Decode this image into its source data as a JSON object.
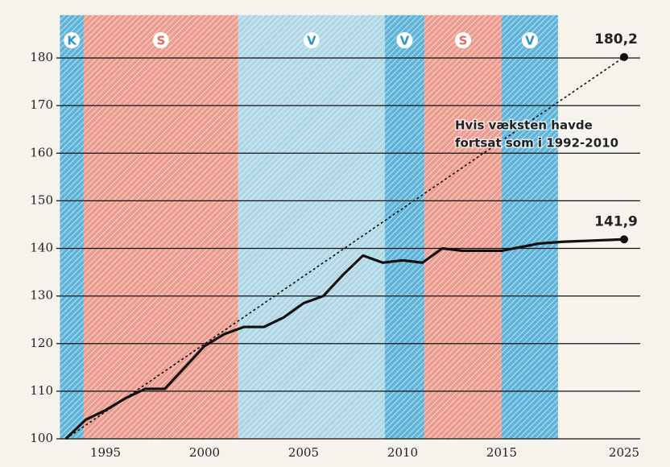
{
  "chart_data": {
    "type": "line",
    "annotation": [
      "Hvis væksten havde",
      "fortsat som i 1992-2010"
    ],
    "periods": [
      {
        "label": "K",
        "start": 1992.7,
        "end": 1993.9,
        "color": "#5eb4d8",
        "label_color": "#2f97c6"
      },
      {
        "label": "S",
        "start": 1993.9,
        "end": 2001.7,
        "color": "#ec9c8e",
        "label_color": "#e8685a"
      },
      {
        "label": "V",
        "start": 2001.7,
        "end": 2009.1,
        "color": "#aed6e5",
        "label_color": "#2f97c6"
      },
      {
        "label": "V",
        "start": 2009.1,
        "end": 2011.1,
        "color": "#5eb4d8",
        "label_color": "#2f97c6"
      },
      {
        "label": "S",
        "start": 2011.1,
        "end": 2015,
        "color": "#ec9c8e",
        "label_color": "#e8685a"
      },
      {
        "label": "V",
        "start": 2015,
        "end": 2019.6,
        "color": "#5eb4d8",
        "label_color": "#2f97c6"
      }
    ],
    "series": [
      {
        "color": "#111111",
        "dashed": false,
        "x": [
          1993,
          1994,
          1995,
          1996,
          1997,
          1998,
          1999,
          2000,
          2001,
          2002,
          2003,
          2004,
          2005,
          2006,
          2007,
          2008,
          2009,
          2010,
          2011,
          2012,
          2013,
          2014,
          2015,
          2016,
          2017,
          2018,
          2019,
          2020,
          2021,
          2022,
          2023,
          2024,
          2025
        ],
        "values": [
          100,
          104,
          106,
          108.5,
          110.5,
          110.5,
          115,
          119.5,
          122,
          123.5,
          123.5,
          125.5,
          128.5,
          130,
          134.5,
          138.5,
          137,
          137.5,
          137,
          140,
          139.5,
          139.5,
          139.5,
          140,
          140.5,
          141,
          141.2,
          141.4,
          141.5,
          141.6,
          141.7,
          141.8,
          141.9
        ],
        "value_labels": [
          null,
          null,
          null,
          null,
          null,
          null,
          null,
          null,
          null,
          null,
          null,
          null,
          null,
          null,
          null,
          null,
          null,
          null,
          null,
          null,
          null,
          null,
          null,
          null,
          null,
          null,
          null,
          null,
          null,
          null,
          null,
          null,
          "141,9"
        ]
      },
      {
        "color": "#111111",
        "dashed": true,
        "x": [
          1993,
          2025
        ],
        "values": [
          100,
          180.2
        ],
        "value_labels": [
          null,
          "180,2"
        ]
      }
    ],
    "xlim": [
      1992.7,
      2025.8
    ],
    "xticks": [
      1995,
      2000,
      2005,
      2010,
      2015,
      2025
    ],
    "ylim": [
      100,
      189
    ],
    "yticks": [
      100,
      110,
      120,
      130,
      140,
      150,
      160,
      170,
      180
    ],
    "grid": true
  }
}
